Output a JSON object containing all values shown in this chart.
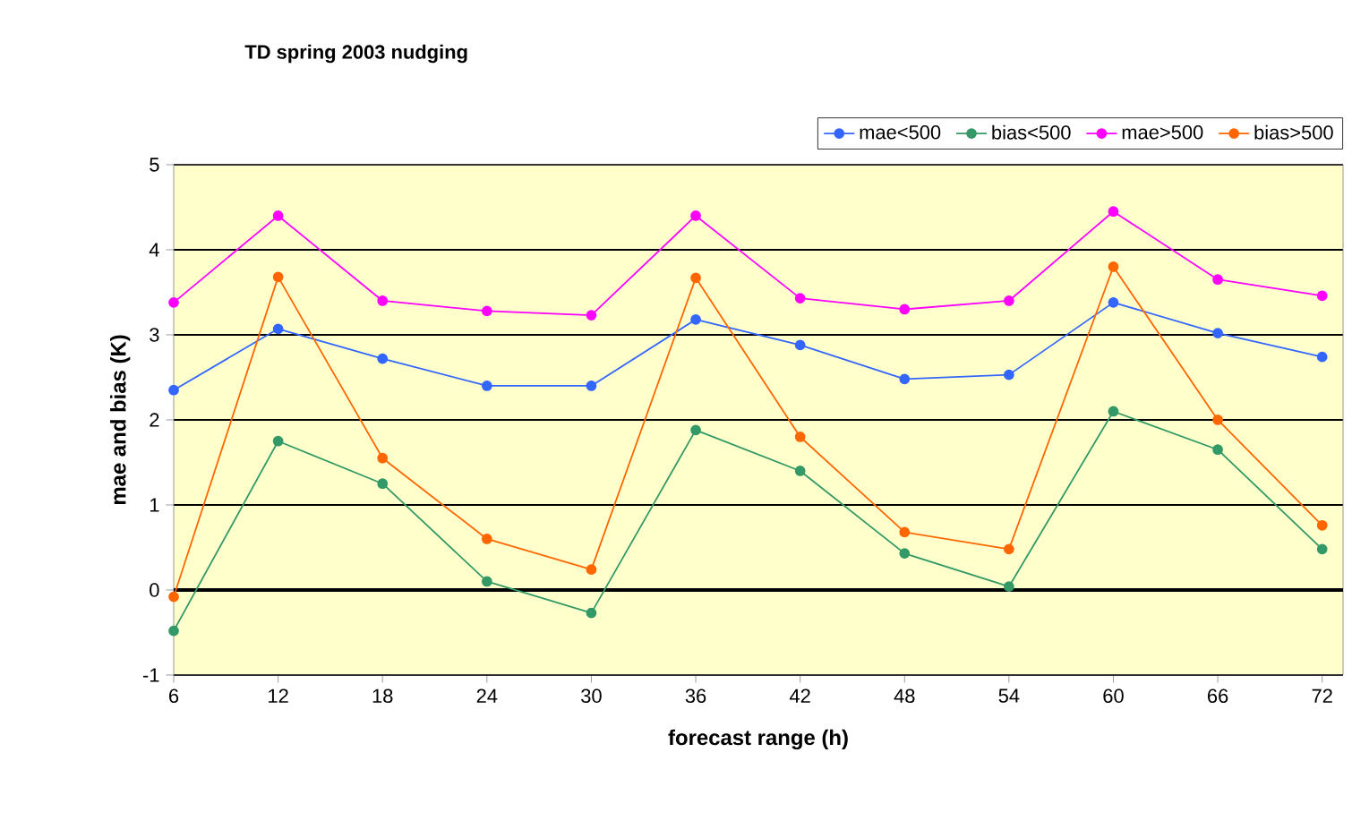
{
  "chart_data": {
    "type": "line",
    "title": "TD spring 2003 nudging",
    "xlabel": "forecast range (h)",
    "ylabel": "mae and bias (K)",
    "categories": [
      "6",
      "12",
      "18",
      "24",
      "30",
      "36",
      "42",
      "48",
      "54",
      "60",
      "66",
      "72"
    ],
    "series": [
      {
        "name": "mae<500",
        "color": "#3366ff",
        "values": [
          2.35,
          3.07,
          2.72,
          2.4,
          2.4,
          3.18,
          2.88,
          2.48,
          2.53,
          3.38,
          3.02,
          2.74
        ]
      },
      {
        "name": "bias<500",
        "color": "#339966",
        "values": [
          -0.48,
          1.75,
          1.25,
          0.1,
          -0.27,
          1.88,
          1.4,
          0.43,
          0.04,
          2.1,
          1.65,
          0.48
        ]
      },
      {
        "name": "mae>500",
        "color": "#ff00ff",
        "values": [
          3.38,
          4.4,
          3.4,
          3.28,
          3.23,
          4.4,
          3.43,
          3.3,
          3.4,
          4.45,
          3.65,
          3.46
        ]
      },
      {
        "name": "bias>500",
        "color": "#ff6600",
        "values": [
          -0.08,
          3.68,
          1.55,
          0.6,
          0.24,
          3.67,
          1.8,
          0.68,
          0.48,
          3.8,
          2.0,
          0.76
        ]
      }
    ],
    "ylim": [
      -1,
      5
    ],
    "yticks": [
      -1,
      0,
      1,
      2,
      3,
      4,
      5
    ],
    "grid": "y",
    "legend": "top right",
    "marker": "circle",
    "line_style": "solid"
  }
}
